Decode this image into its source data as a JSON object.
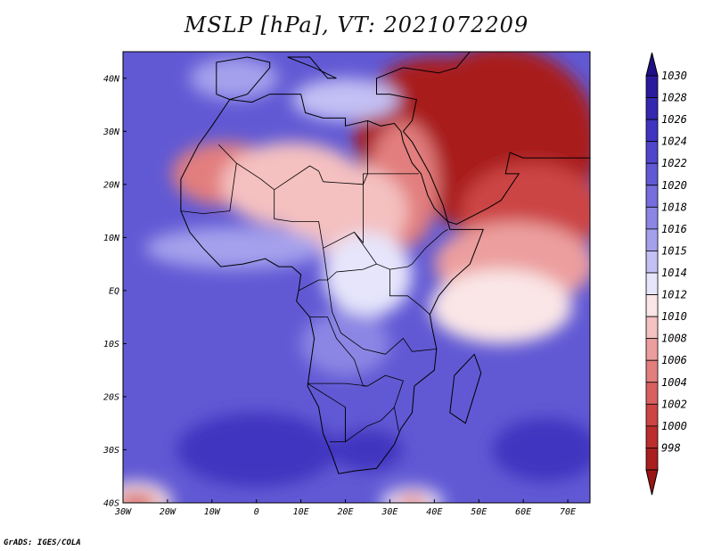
{
  "title": "MSLP [hPa], VT: 2021072209",
  "credit": "GrADS: IGES/COLA",
  "map": {
    "lon_range": [
      -30,
      75
    ],
    "lat_range": [
      -40,
      45
    ],
    "x_ticks": [
      {
        "lon": -30,
        "label": "30W"
      },
      {
        "lon": -20,
        "label": "20W"
      },
      {
        "lon": -10,
        "label": "10W"
      },
      {
        "lon": 0,
        "label": "0"
      },
      {
        "lon": 10,
        "label": "10E"
      },
      {
        "lon": 20,
        "label": "20E"
      },
      {
        "lon": 30,
        "label": "30E"
      },
      {
        "lon": 40,
        "label": "40E"
      },
      {
        "lon": 50,
        "label": "50E"
      },
      {
        "lon": 60,
        "label": "60E"
      },
      {
        "lon": 70,
        "label": "70E"
      }
    ],
    "y_ticks": [
      {
        "lat": 40,
        "label": "40N"
      },
      {
        "lat": 30,
        "label": "30N"
      },
      {
        "lat": 20,
        "label": "20N"
      },
      {
        "lat": 10,
        "label": "10N"
      },
      {
        "lat": 0,
        "label": "EQ"
      },
      {
        "lat": -10,
        "label": "10S"
      },
      {
        "lat": -20,
        "label": "20S"
      },
      {
        "lat": -30,
        "label": "30S"
      },
      {
        "lat": -40,
        "label": "40S"
      }
    ]
  },
  "colorbar": {
    "levels": [
      {
        "label": "1030",
        "color": "#2a1a9c"
      },
      {
        "label": "1028",
        "color": "#3528b0"
      },
      {
        "label": "1026",
        "color": "#4035c0"
      },
      {
        "label": "1024",
        "color": "#5046cc"
      },
      {
        "label": "1022",
        "color": "#6159d4"
      },
      {
        "label": "1020",
        "color": "#756edc"
      },
      {
        "label": "1018",
        "color": "#8b86e4"
      },
      {
        "label": "1016",
        "color": "#a4a1ec"
      },
      {
        "label": "1015",
        "color": "#c2c0f4"
      },
      {
        "label": "1014",
        "color": "#e6e5fb"
      },
      {
        "label": "1012",
        "color": "#fae6e6"
      },
      {
        "label": "1010",
        "color": "#f4c0c0"
      },
      {
        "label": "1008",
        "color": "#ec9e9e"
      },
      {
        "label": "1006",
        "color": "#e27e7e"
      },
      {
        "label": "1004",
        "color": "#d86060"
      },
      {
        "label": "1002",
        "color": "#cc4444"
      },
      {
        "label": "1000",
        "color": "#bc2d2d"
      },
      {
        "label": "998",
        "color": "#a91e1e"
      }
    ],
    "top_arrow_color": "#1f1085",
    "bottom_arrow_color": "#9a1414"
  },
  "pressure_field": {
    "background_color": "#6159d4",
    "cells": [
      {
        "lon": 40,
        "lat": 30,
        "rx": 18,
        "ry": 14,
        "level": "998"
      },
      {
        "lon": 55,
        "lat": 28,
        "rx": 22,
        "ry": 18,
        "level": "998"
      },
      {
        "lon": 62,
        "lat": 15,
        "rx": 16,
        "ry": 9,
        "level": "1002"
      },
      {
        "lon": 58,
        "lat": 5,
        "rx": 18,
        "ry": 8,
        "level": "1008"
      },
      {
        "lon": 55,
        "lat": -3,
        "rx": 16,
        "ry": 7,
        "level": "1012"
      },
      {
        "lon": 33,
        "lat": 20,
        "rx": 8,
        "ry": 12,
        "level": "1006"
      },
      {
        "lon": -7,
        "lat": 22,
        "rx": 12,
        "ry": 6,
        "level": "1006"
      },
      {
        "lon": 8,
        "lat": 20,
        "rx": 16,
        "ry": 8,
        "level": "1010"
      },
      {
        "lon": 20,
        "lat": 15,
        "rx": 14,
        "ry": 9,
        "level": "1010"
      },
      {
        "lon": 25,
        "lat": 3,
        "rx": 10,
        "ry": 8,
        "level": "1014"
      },
      {
        "lon": 20,
        "lat": 36,
        "rx": 12,
        "ry": 4,
        "level": "1015"
      },
      {
        "lon": -5,
        "lat": 40,
        "rx": 10,
        "ry": 4,
        "level": "1016"
      },
      {
        "lon": -5,
        "lat": 8,
        "rx": 20,
        "ry": 4,
        "level": "1016"
      },
      {
        "lon": 20,
        "lat": -10,
        "rx": 10,
        "ry": 6,
        "level": "1018"
      },
      {
        "lon": 22,
        "lat": -22,
        "rx": 10,
        "ry": 5,
        "level": "1022"
      },
      {
        "lon": 0,
        "lat": -30,
        "rx": 18,
        "ry": 7,
        "level": "1026"
      },
      {
        "lon": 25,
        "lat": -30,
        "rx": 8,
        "ry": 4,
        "level": "1026"
      },
      {
        "lon": 65,
        "lat": -30,
        "rx": 12,
        "ry": 6,
        "level": "1026"
      },
      {
        "lon": -30,
        "lat": 30,
        "rx": 6,
        "ry": 8,
        "level": "1022"
      },
      {
        "lon": -27,
        "lat": -40,
        "rx": 8,
        "ry": 4,
        "level": "1012"
      },
      {
        "lon": -27,
        "lat": -40,
        "rx": 5,
        "ry": 2,
        "level": "1004"
      },
      {
        "lon": 35,
        "lat": -40,
        "rx": 7,
        "ry": 3,
        "level": "1014"
      },
      {
        "lon": 35,
        "lat": -40,
        "rx": 4,
        "ry": 2,
        "level": "1008"
      }
    ]
  },
  "coastline": [
    [
      -17,
      21
    ],
    [
      -17,
      15
    ],
    [
      -15,
      11
    ],
    [
      -12,
      8
    ],
    [
      -8,
      4.5
    ],
    [
      -3,
      5
    ],
    [
      2,
      6
    ],
    [
      5,
      4.5
    ],
    [
      8,
      4.5
    ],
    [
      10,
      3
    ],
    [
      9.5,
      0
    ],
    [
      9,
      -2
    ],
    [
      12,
      -5
    ],
    [
      13,
      -9
    ],
    [
      12,
      -15
    ],
    [
      11.5,
      -18
    ],
    [
      14,
      -22
    ],
    [
      15,
      -27
    ],
    [
      17,
      -31
    ],
    [
      18.5,
      -34.5
    ],
    [
      22,
      -34
    ],
    [
      27,
      -33.5
    ],
    [
      31,
      -29
    ],
    [
      32.5,
      -26
    ],
    [
      35,
      -23
    ],
    [
      35.5,
      -18
    ],
    [
      40,
      -15
    ],
    [
      40.5,
      -11
    ],
    [
      39.5,
      -7
    ],
    [
      39,
      -4.5
    ],
    [
      41,
      -1
    ],
    [
      44,
      2
    ],
    [
      48,
      5
    ],
    [
      51,
      11.5
    ],
    [
      43.5,
      11.5
    ],
    [
      43,
      13
    ],
    [
      40,
      15.5
    ],
    [
      38.5,
      18
    ],
    [
      37,
      22
    ],
    [
      35,
      24
    ],
    [
      33,
      28
    ],
    [
      32.5,
      30
    ],
    [
      31,
      31.5
    ],
    [
      28,
      31
    ],
    [
      25,
      32
    ],
    [
      20,
      31
    ],
    [
      20,
      32.5
    ],
    [
      15,
      32.5
    ],
    [
      11,
      33.5
    ],
    [
      10,
      37
    ],
    [
      8,
      37
    ],
    [
      3,
      37
    ],
    [
      -1,
      35.5
    ],
    [
      -6,
      36
    ],
    [
      -10,
      31
    ],
    [
      -13,
      27.5
    ],
    [
      -17,
      21
    ]
  ],
  "other_land": [
    [
      [
        33,
        30
      ],
      [
        35,
        32
      ],
      [
        36,
        36
      ],
      [
        30,
        37
      ],
      [
        27,
        37
      ],
      [
        27,
        40
      ],
      [
        33,
        42
      ],
      [
        41,
        41
      ],
      [
        45,
        42
      ],
      [
        48,
        45
      ],
      [
        55,
        45
      ],
      [
        65,
        45
      ],
      [
        75,
        45
      ],
      [
        75,
        25
      ],
      [
        67,
        25
      ],
      [
        60,
        25
      ],
      [
        57,
        26
      ],
      [
        56,
        22
      ],
      [
        59,
        22
      ],
      [
        55,
        17
      ],
      [
        52,
        15.5
      ],
      [
        45,
        12.5
      ],
      [
        43,
        13
      ],
      [
        42,
        16
      ],
      [
        39,
        22
      ],
      [
        35,
        28
      ],
      [
        33,
        30
      ]
    ],
    [
      [
        -9,
        37
      ],
      [
        -9,
        43
      ],
      [
        -2,
        44
      ],
      [
        3,
        43
      ],
      [
        3,
        42
      ],
      [
        0,
        39
      ],
      [
        -2,
        37
      ],
      [
        -6,
        36
      ],
      [
        -9,
        37
      ]
    ],
    [
      [
        7,
        44
      ],
      [
        12,
        44
      ],
      [
        16,
        40
      ],
      [
        18,
        40
      ],
      [
        13,
        42
      ],
      [
        7,
        44
      ]
    ],
    [
      [
        49,
        -12
      ],
      [
        50.5,
        -15.5
      ],
      [
        47,
        -25
      ],
      [
        43.5,
        -23
      ],
      [
        44.5,
        -16
      ],
      [
        49,
        -12
      ]
    ]
  ],
  "borders": [
    [
      [
        -8.5,
        27.5
      ],
      [
        -4.5,
        24
      ],
      [
        1,
        21
      ],
      [
        4,
        19
      ],
      [
        12,
        23.5
      ],
      [
        14,
        22.5
      ],
      [
        15,
        20.5
      ]
    ],
    [
      [
        -4.5,
        24
      ],
      [
        -6,
        15
      ],
      [
        -12,
        14.5
      ],
      [
        -17,
        15
      ]
    ],
    [
      [
        4,
        19
      ],
      [
        4,
        13.5
      ],
      [
        8,
        13
      ],
      [
        14,
        13
      ],
      [
        15,
        8
      ],
      [
        22,
        11
      ],
      [
        24,
        9
      ],
      [
        24,
        20
      ],
      [
        15,
        20.5
      ]
    ],
    [
      [
        24,
        20
      ],
      [
        24,
        22
      ],
      [
        36.5,
        22
      ]
    ],
    [
      [
        25,
        32
      ],
      [
        25,
        22
      ],
      [
        24,
        20
      ]
    ],
    [
      [
        22,
        11
      ],
      [
        27,
        5
      ],
      [
        30,
        4
      ],
      [
        34,
        4.5
      ],
      [
        35,
        5
      ],
      [
        38,
        8
      ],
      [
        42,
        11
      ],
      [
        43,
        11.5
      ]
    ],
    [
      [
        15,
        8
      ],
      [
        16,
        2
      ],
      [
        18,
        3.5
      ],
      [
        24,
        4
      ],
      [
        27,
        5
      ]
    ],
    [
      [
        9.5,
        0
      ],
      [
        14,
        2
      ],
      [
        16,
        2
      ],
      [
        17,
        -4
      ],
      [
        19,
        -8
      ],
      [
        24,
        -11
      ],
      [
        29,
        -12
      ]
    ],
    [
      [
        12,
        -5
      ],
      [
        16,
        -5
      ],
      [
        18,
        -9
      ],
      [
        22,
        -13
      ],
      [
        24,
        -18
      ],
      [
        25,
        -18
      ]
    ],
    [
      [
        29,
        -12
      ],
      [
        33,
        -9
      ],
      [
        35,
        -11.5
      ],
      [
        40.5,
        -11
      ]
    ],
    [
      [
        30,
        4
      ],
      [
        30,
        -1
      ],
      [
        34,
        -1
      ],
      [
        37,
        -3
      ],
      [
        39,
        -4.5
      ]
    ],
    [
      [
        11.5,
        -17.5
      ],
      [
        20,
        -17.5
      ],
      [
        25,
        -18
      ],
      [
        29,
        -16
      ],
      [
        33,
        -17
      ],
      [
        31,
        -22
      ],
      [
        32,
        -26.5
      ]
    ],
    [
      [
        20,
        -22
      ],
      [
        20,
        -28.5
      ],
      [
        25,
        -25.5
      ],
      [
        28,
        -24.5
      ],
      [
        31,
        -22
      ]
    ],
    [
      [
        11.5,
        -17.5
      ],
      [
        20,
        -22
      ],
      [
        20,
        -28.5
      ],
      [
        16.5,
        -28.5
      ]
    ]
  ]
}
